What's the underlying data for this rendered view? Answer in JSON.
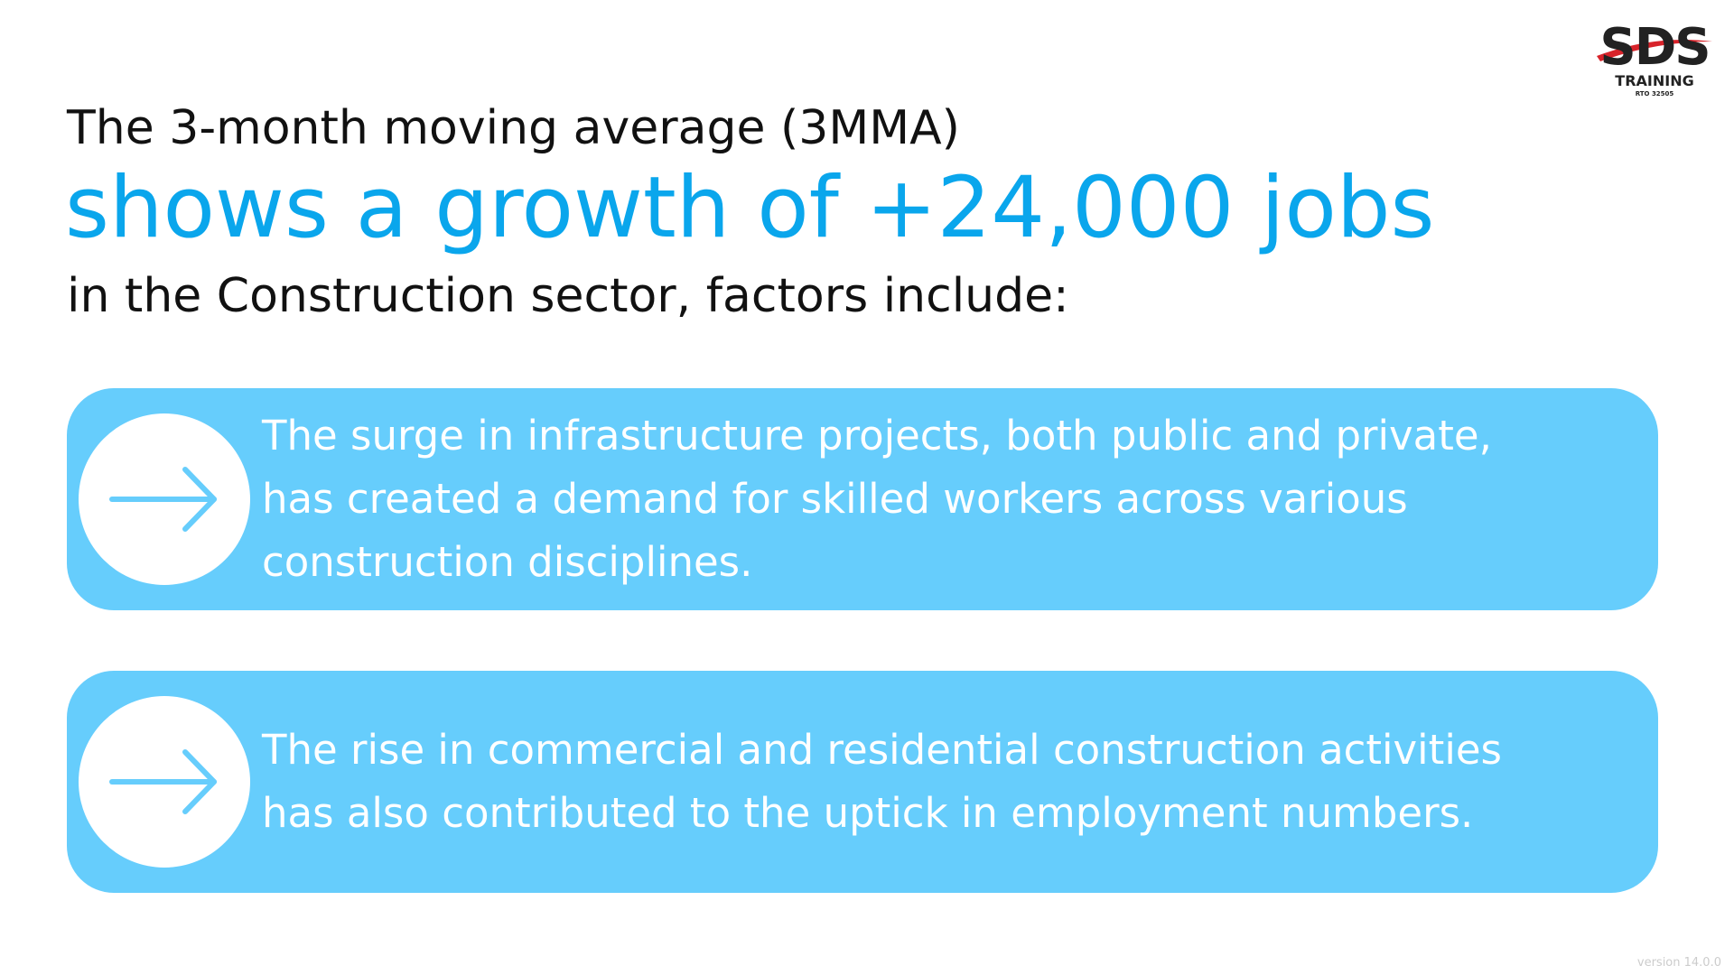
{
  "logo": {
    "brand": "SDS",
    "subtitle": "TRAINING",
    "rto": "RTO 32505"
  },
  "heading": {
    "line1": "The 3-month moving average (3MMA)",
    "line2": "shows a growth of +24,000 jobs",
    "line3": "in the Construction sector, factors include:"
  },
  "factors": [
    {
      "lines": [
        "The surge in infrastructure projects, both public and private,",
        "has created a demand for skilled workers across various",
        "construction disciplines."
      ]
    },
    {
      "lines": [
        "The rise in commercial and residential construction activities",
        "has also contributed to the uptick in employment numbers."
      ]
    }
  ],
  "footer": {
    "version": "version 14.0.0"
  }
}
